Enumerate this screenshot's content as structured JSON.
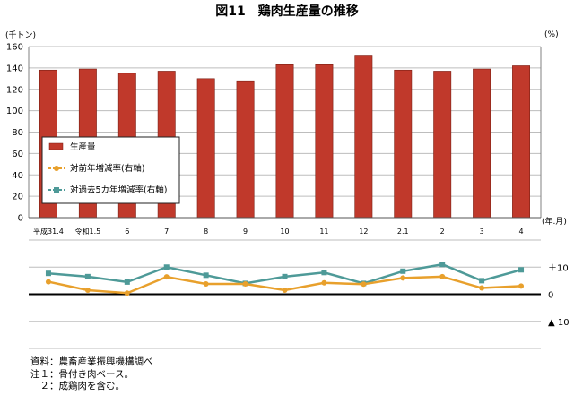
{
  "title": "図11　鶏肉生産量の推移",
  "chart_data": [
    {
      "type": "bar",
      "categories": [
        "平成31.4",
        "令和1.5",
        "6",
        "7",
        "8",
        "9",
        "10",
        "11",
        "12",
        "2.1",
        "2",
        "3",
        "4"
      ],
      "series": [
        {
          "name": "生産量",
          "values": [
            138,
            139,
            135,
            137,
            130,
            128,
            143,
            143,
            152,
            138,
            137,
            139,
            142
          ]
        }
      ],
      "ylabel": "(千トン)",
      "xlabel": "(年.月)",
      "ylim": [
        0,
        160
      ],
      "yticks": [
        "0",
        "20",
        "40",
        "60",
        "80",
        "100",
        "120",
        "140",
        "160"
      ],
      "grid": true,
      "legend_position": "bottom-left",
      "colors": {
        "bar": "#c0392b"
      }
    },
    {
      "type": "line",
      "categories": [
        "平成31.4",
        "令和1.5",
        "6",
        "7",
        "8",
        "9",
        "10",
        "11",
        "12",
        "2.1",
        "2",
        "3",
        "4"
      ],
      "series": [
        {
          "name": "対前年増減率(右軸)",
          "values": [
            4.6,
            1.5,
            0.4,
            6.4,
            3.8,
            3.8,
            1.5,
            4.2,
            3.7,
            6.0,
            6.5,
            2.3,
            3.0
          ]
        },
        {
          "name": "対過去5カ年増減率(右軸)",
          "values": [
            7.7,
            6.5,
            4.5,
            10.0,
            7.0,
            4.0,
            6.5,
            8.0,
            4.0,
            8.5,
            11.0,
            5.0,
            9.0
          ]
        }
      ],
      "ylabel": "(%)",
      "ylim": [
        -20,
        20
      ],
      "yticks": [
        "＋10",
        "0",
        "▲ 10"
      ],
      "grid": true,
      "colors": {
        "yoy": "#e8a02c",
        "five_year": "#4e9a98",
        "zero_line": "#000000"
      }
    }
  ],
  "notes": [
    "資料：農畜産業振興機構調べ",
    "注１：骨付き肉ベース。",
    "　２：成鶏肉を含む。"
  ]
}
